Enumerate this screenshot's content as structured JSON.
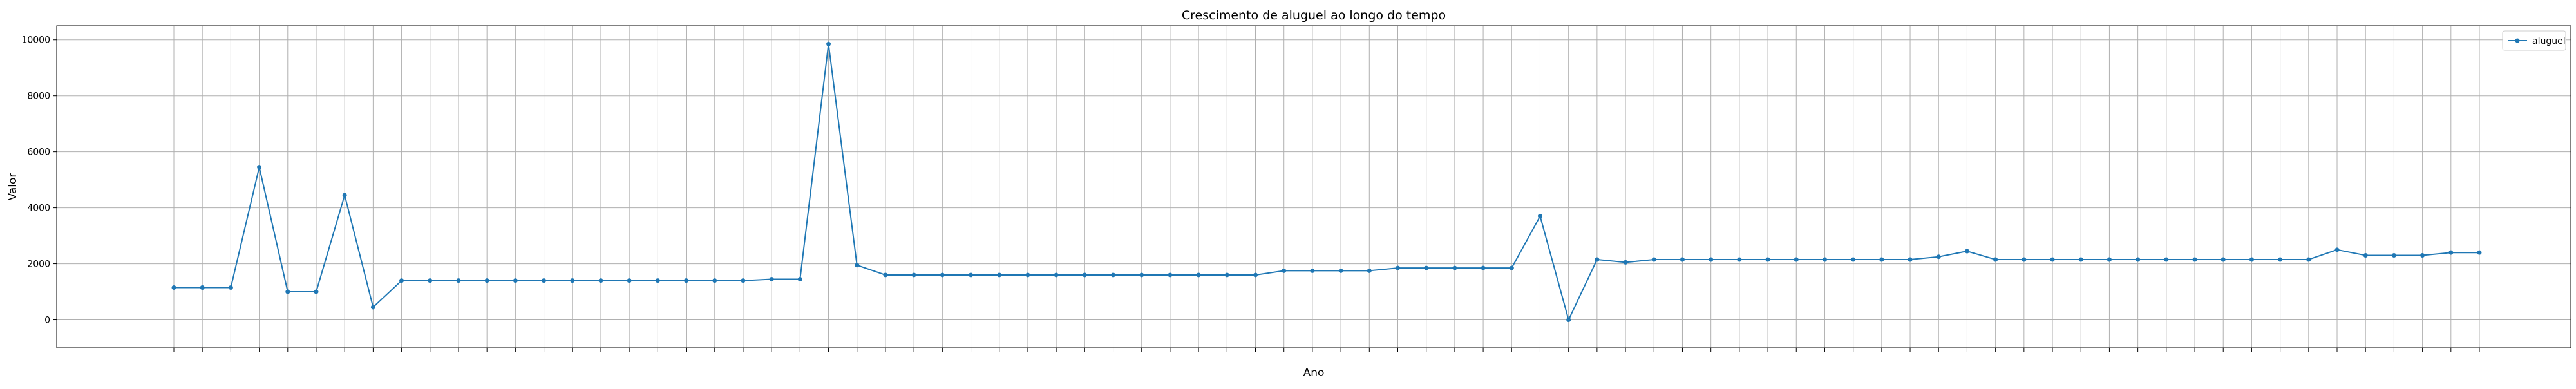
{
  "chart_data": {
    "type": "line",
    "title": "Crescimento de aluguel ao longo do tempo",
    "xlabel": "Ano",
    "ylabel": "Valor",
    "ylim": [
      -1000,
      10500
    ],
    "yticks": [
      0,
      2000,
      4000,
      6000,
      8000,
      10000
    ],
    "grid": true,
    "legend_position": "top-right",
    "color": "#1f77b4",
    "marker": "circle",
    "x_tick_labels_legible": false,
    "series": [
      {
        "name": "aluguel",
        "values": [
          1150,
          1150,
          1150,
          5450,
          1000,
          1000,
          4450,
          450,
          1400,
          1400,
          1400,
          1400,
          1400,
          1400,
          1400,
          1400,
          1400,
          1400,
          1400,
          1400,
          1400,
          1450,
          1450,
          9850,
          1950,
          1600,
          1600,
          1600,
          1600,
          1600,
          1600,
          1600,
          1600,
          1600,
          1600,
          1600,
          1600,
          1600,
          1600,
          1750,
          1750,
          1750,
          1750,
          1850,
          1850,
          1850,
          1850,
          1850,
          3700,
          0,
          2150,
          2050,
          2150,
          2150,
          2150,
          2150,
          2150,
          2150,
          2150,
          2150,
          2150,
          2150,
          2250,
          2450,
          2150,
          2150,
          2150,
          2150,
          2150,
          2150,
          2150,
          2150,
          2150,
          2150,
          2150,
          2150,
          2500,
          2300,
          2300,
          2300,
          2400,
          2400
        ]
      }
    ]
  }
}
